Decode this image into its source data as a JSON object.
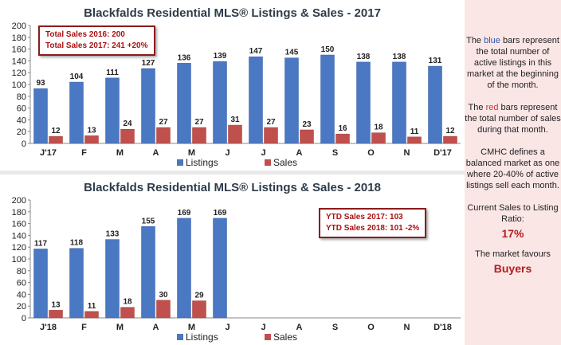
{
  "chart_data": [
    {
      "type": "bar",
      "title": "Blackfalds Residential MLS® Listings & Sales - 2017",
      "categories": [
        "J'17",
        "F",
        "M",
        "A",
        "M",
        "J",
        "J",
        "A",
        "S",
        "O",
        "N",
        "D'17"
      ],
      "ylim": [
        0,
        200
      ],
      "yticks": [
        0,
        20,
        40,
        60,
        80,
        100,
        120,
        140,
        160,
        180,
        200
      ],
      "series": [
        {
          "name": "Listings",
          "color": "#4a78c2",
          "values": [
            93,
            104,
            111,
            127,
            136,
            139,
            147,
            145,
            150,
            138,
            138,
            131
          ]
        },
        {
          "name": "Sales",
          "color": "#c0504d",
          "values": [
            12,
            13,
            24,
            27,
            27,
            31,
            27,
            23,
            16,
            18,
            11,
            12
          ]
        }
      ],
      "legend": "bottom",
      "grid": false,
      "annotation": [
        "Total Sales 2016: 200",
        "Total Sales 2017: 241  +20%"
      ]
    },
    {
      "type": "bar",
      "title": "Blackfalds Residential MLS® Listings & Sales - 2018",
      "categories": [
        "J'18",
        "F",
        "M",
        "A",
        "M",
        "J",
        "J",
        "A",
        "S",
        "O",
        "N",
        "D'18"
      ],
      "ylim": [
        0,
        200
      ],
      "yticks": [
        0,
        20,
        40,
        60,
        80,
        100,
        120,
        140,
        160,
        180,
        200
      ],
      "series": [
        {
          "name": "Listings",
          "color": "#4a78c2",
          "values": [
            117,
            118,
            133,
            155,
            169,
            169,
            null,
            null,
            null,
            null,
            null,
            null
          ]
        },
        {
          "name": "Sales",
          "color": "#c0504d",
          "values": [
            13,
            11,
            18,
            30,
            29,
            null,
            null,
            null,
            null,
            null,
            null,
            null
          ]
        }
      ],
      "legend": "bottom",
      "grid": false,
      "annotation": [
        "YTD Sales 2017: 103",
        "YTD Sales 2018: 101  -2%"
      ]
    }
  ],
  "sidebar": {
    "p1_pre": "The ",
    "p1_blue": "blue",
    "p1_post": " bars represent the total number of active listings in this market at the beginning of the month.",
    "p2_pre": "The ",
    "p2_red": "red",
    "p2_post": " bars represent the total number of sales during that month.",
    "p3": "CMHC defines a balanced market as one where 20-40% of active listings sell each month.",
    "p4": "Current Sales to Listing Ratio:",
    "ratio": "17%",
    "p5": "The market favours",
    "favours": "Buyers"
  }
}
